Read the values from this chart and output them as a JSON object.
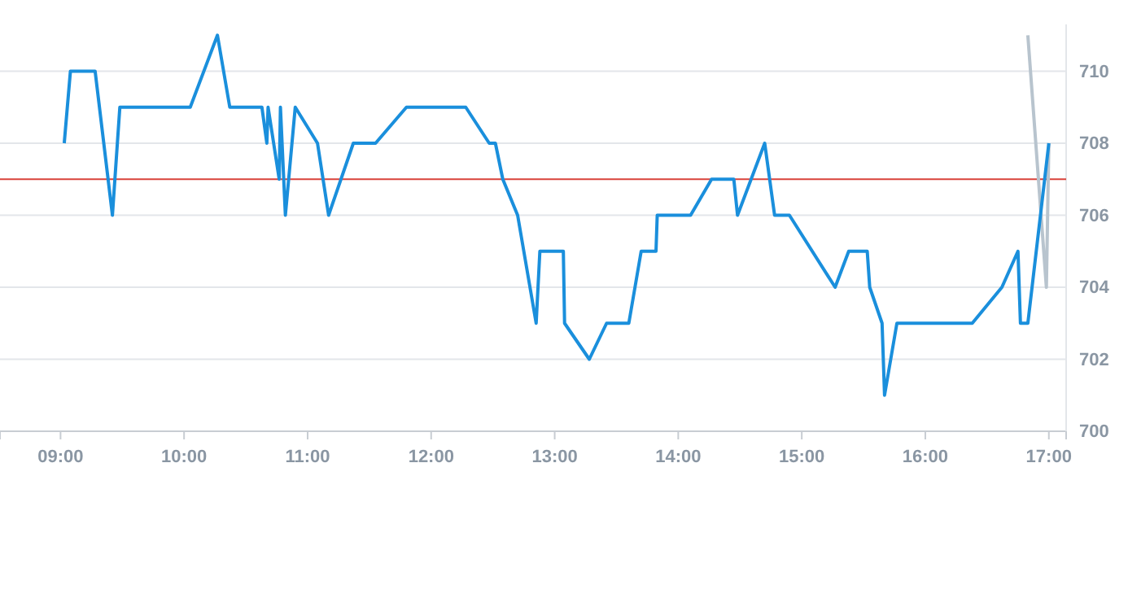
{
  "chart_data": {
    "type": "line",
    "xlim": [
      8.51,
      17.14
    ],
    "xticks": [
      {
        "value": 9,
        "label": "09:00"
      },
      {
        "value": 10,
        "label": "10:00"
      },
      {
        "value": 11,
        "label": "11:00"
      },
      {
        "value": 12,
        "label": "12:00"
      },
      {
        "value": 13,
        "label": "13:00"
      },
      {
        "value": 14,
        "label": "14:00"
      },
      {
        "value": 15,
        "label": "15:00"
      },
      {
        "value": 16,
        "label": "16:00"
      },
      {
        "value": 17,
        "label": "17:00"
      }
    ],
    "ylim": [
      700,
      711.3
    ],
    "yticks": [
      700,
      702,
      704,
      706,
      708,
      710
    ],
    "grid": "y",
    "marker": "none",
    "line_style": "solid",
    "ref_lines": [
      {
        "axis": "y",
        "value": 707,
        "label": null,
        "color": "#d9423a"
      }
    ],
    "series": [
      {
        "color": "#1a8fdc",
        "x": [
          9.03,
          9.08,
          9.28,
          9.42,
          9.48,
          10.05,
          10.27,
          10.37,
          10.63,
          10.67,
          10.68,
          10.77,
          10.78,
          10.82,
          10.9,
          11.08,
          11.17,
          11.37,
          11.55,
          11.8,
          12.28,
          12.47,
          12.52,
          12.58,
          12.7,
          12.85,
          12.88,
          13.07,
          13.08,
          13.28,
          13.42,
          13.6,
          13.7,
          13.82,
          13.83,
          14.1,
          14.27,
          14.45,
          14.48,
          14.7,
          14.78,
          14.9,
          15.27,
          15.38,
          15.53,
          15.55,
          15.65,
          15.67,
          15.77,
          16.38,
          16.62,
          16.75,
          16.77,
          16.83,
          17.0
        ],
        "values": [
          708,
          710,
          710,
          706,
          709,
          709,
          711,
          709,
          709,
          708,
          709,
          707,
          709,
          706,
          709,
          708,
          706,
          708,
          708,
          709,
          709,
          708,
          708,
          707,
          706,
          703,
          705,
          705,
          703,
          702,
          703,
          703,
          705,
          705,
          706,
          706,
          707,
          707,
          706,
          708,
          706,
          706,
          704,
          705,
          705,
          704,
          703,
          701,
          703,
          703,
          704,
          705,
          703,
          703,
          708
        ]
      },
      {
        "color": "#b8c4ce",
        "x": [
          16.83,
          16.98,
          17.0
        ],
        "values": [
          711,
          704,
          708
        ]
      }
    ]
  }
}
